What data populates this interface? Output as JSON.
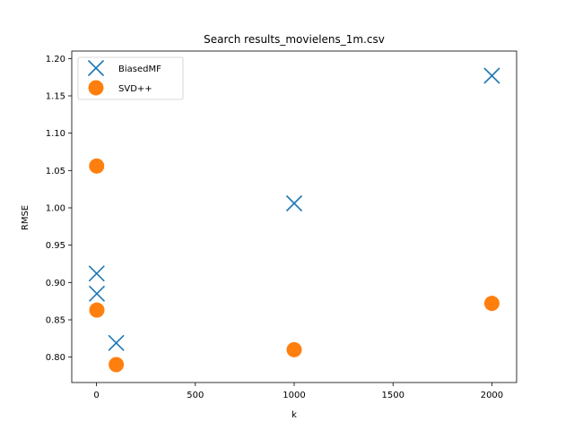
{
  "chart_data": {
    "type": "scatter",
    "title": "Search results_movielens_1m.csv",
    "xlabel": "k",
    "ylabel": "RMSE",
    "xlim": [
      -125,
      2125
    ],
    "ylim": [
      0.766,
      1.21
    ],
    "xticks": [
      0,
      500,
      1000,
      1500,
      2000
    ],
    "yticks": [
      0.8,
      0.85,
      0.9,
      0.95,
      1.0,
      1.05,
      1.1,
      1.15,
      1.2
    ],
    "yticks_labels": [
      "0.80",
      "0.85",
      "0.90",
      "0.95",
      "1.00",
      "1.05",
      "1.10",
      "1.15",
      "1.20"
    ],
    "grid": false,
    "legend_position": "upper-left",
    "series": [
      {
        "name": "BiasedMF",
        "marker": "x",
        "color": "#1f77b4",
        "points": [
          {
            "x": 1,
            "y": 0.912
          },
          {
            "x": 2,
            "y": 0.885
          },
          {
            "x": 100,
            "y": 0.819
          },
          {
            "x": 1000,
            "y": 1.006
          },
          {
            "x": 2000,
            "y": 1.177
          }
        ]
      },
      {
        "name": "SVD++",
        "marker": "o",
        "color": "#ff7f0e",
        "points": [
          {
            "x": 1,
            "y": 1.056
          },
          {
            "x": 2,
            "y": 0.863
          },
          {
            "x": 100,
            "y": 0.79
          },
          {
            "x": 1000,
            "y": 0.81
          },
          {
            "x": 2000,
            "y": 0.872
          }
        ]
      }
    ]
  }
}
